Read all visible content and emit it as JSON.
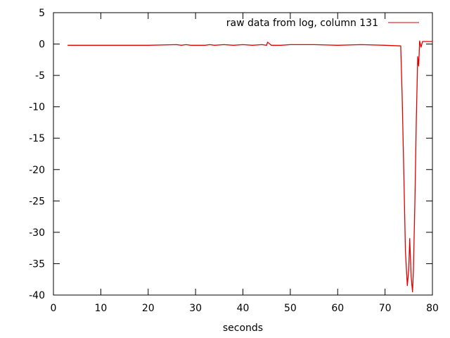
{
  "chart_data": {
    "type": "line",
    "xlabel": "seconds",
    "ylabel": "",
    "xlim": [
      0,
      80
    ],
    "ylim": [
      -40,
      5
    ],
    "xticks": [
      0,
      10,
      20,
      30,
      40,
      50,
      60,
      70,
      80
    ],
    "yticks": [
      5,
      0,
      -5,
      -10,
      -15,
      -20,
      -25,
      -30,
      -35,
      -40
    ],
    "grid": false,
    "legend_position": "top-right",
    "series": [
      {
        "name": "raw data from log, column 131",
        "color": "#e00000",
        "x": [
          3,
          10,
          20,
          26,
          27,
          28,
          29,
          30,
          32,
          33,
          34,
          36,
          38,
          40,
          42,
          44,
          45,
          45.2,
          46,
          48,
          50,
          55,
          60,
          65,
          70,
          73.3,
          73.6,
          74.0,
          74.3,
          74.7,
          75.0,
          75.2,
          75.5,
          75.8,
          76.0,
          76.3,
          76.6,
          76.9,
          77.1,
          77.3,
          77.6,
          77.9,
          78.2,
          80
        ],
        "y": [
          -0.2,
          -0.2,
          -0.2,
          -0.1,
          -0.2,
          -0.1,
          -0.2,
          -0.2,
          -0.2,
          -0.1,
          -0.2,
          -0.1,
          -0.2,
          -0.1,
          -0.2,
          -0.1,
          -0.2,
          0.3,
          -0.2,
          -0.2,
          -0.1,
          -0.1,
          -0.2,
          -0.1,
          -0.2,
          -0.3,
          -8,
          -22,
          -33,
          -38.5,
          -36,
          -31,
          -37,
          -39.5,
          -36,
          -25,
          -12,
          -2,
          -3.5,
          0.5,
          -0.5,
          0.4,
          0.4,
          0.4
        ]
      }
    ]
  }
}
